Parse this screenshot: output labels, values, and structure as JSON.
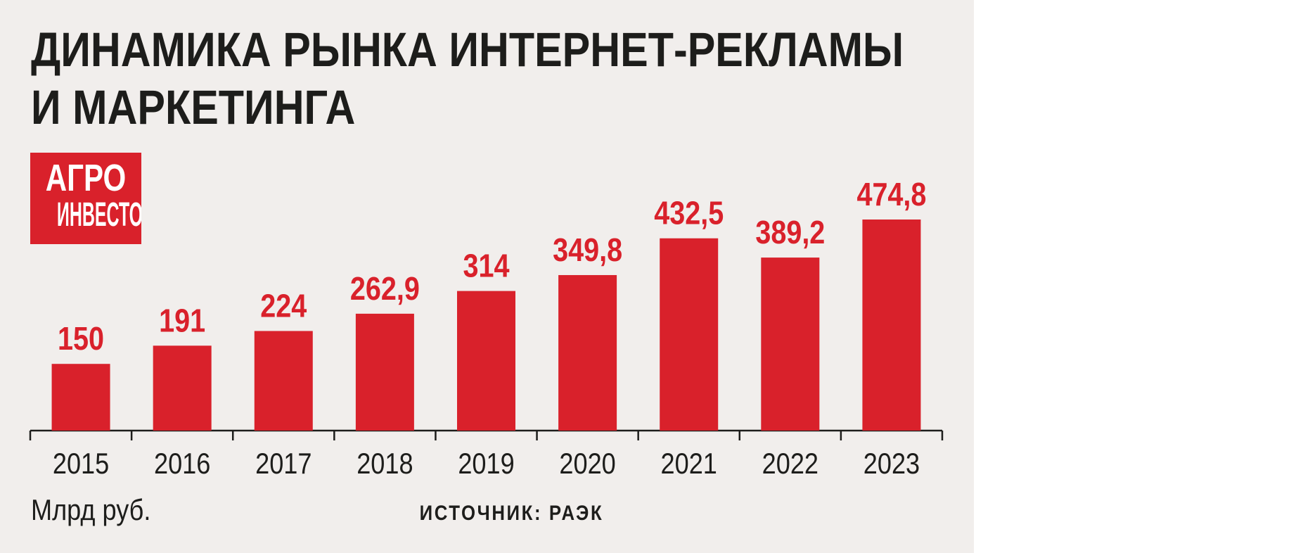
{
  "title": {
    "line1": "ДИНАМИКА РЫНКА ИНТЕРНЕТ-РЕКЛАМЫ",
    "line2": "И МАРКЕТИНГА"
  },
  "logo": {
    "line1": "АГРО",
    "line2": "ИНВЕСТОР"
  },
  "unit_label": "Млрд руб.",
  "source": "ИСТОЧНИК: РАЭК",
  "colors": {
    "bar": "#d9212b",
    "value_label": "#d9212b",
    "text": "#1d1d1b",
    "background": "#f1eeec"
  },
  "chart_data": {
    "type": "bar",
    "title": "ДИНАМИКА РЫНКА ИНТЕРНЕТ-РЕКЛАМЫ И МАРКЕТИНГА",
    "ylabel": "Млрд руб.",
    "categories": [
      "2015",
      "2016",
      "2017",
      "2018",
      "2019",
      "2020",
      "2021",
      "2022",
      "2023"
    ],
    "values": [
      150,
      191,
      224,
      262.9,
      314,
      349.8,
      432.5,
      389.2,
      474.8
    ],
    "value_labels": [
      "150",
      "191",
      "224",
      "262,9",
      "314",
      "349,8",
      "432,5",
      "389,2",
      "474,8"
    ],
    "ylim": [
      0,
      474.8
    ],
    "grid": false,
    "legend": "none"
  }
}
